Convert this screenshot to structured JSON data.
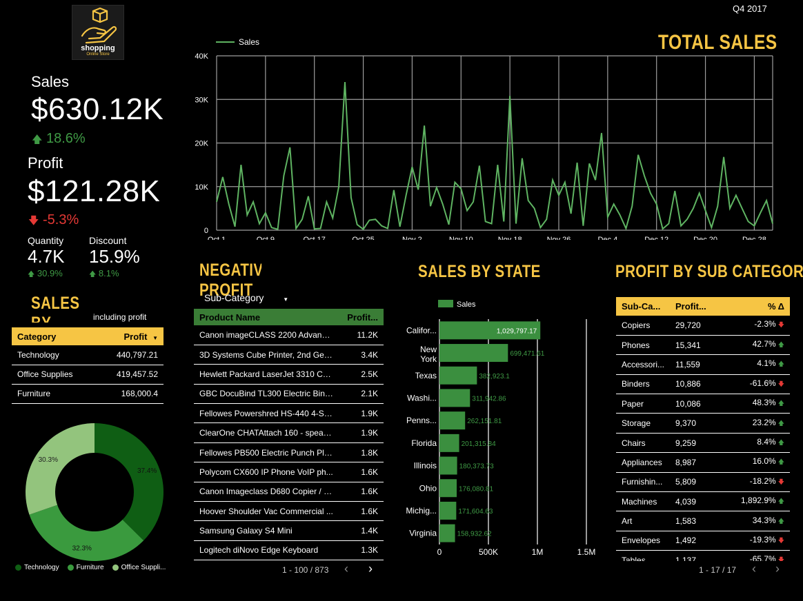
{
  "header": {
    "period": "Q4 2017",
    "logo_text": "shopping",
    "logo_sub": "Online Store"
  },
  "kpis": {
    "sales_label": "Sales",
    "sales_value": "$630.12K",
    "sales_delta": "18.6%",
    "profit_label": "Profit",
    "profit_value": "$121.28K",
    "profit_delta": "-5.3%",
    "quantity_label": "Quantity",
    "quantity_value": "4.7K",
    "quantity_delta": "30.9%",
    "discount_label": "Discount",
    "discount_value": "15.9%",
    "discount_delta": "8.1%"
  },
  "category": {
    "title": "SALES BY CATEGORY",
    "subtitle": "including profit",
    "col_category": "Category",
    "col_profit": "Profit",
    "rows": [
      {
        "name": "Technology",
        "profit": "440,797.21"
      },
      {
        "name": "Office Supplies",
        "profit": "419,457.52"
      },
      {
        "name": "Furniture",
        "profit": "168,000.4"
      }
    ]
  },
  "negative": {
    "title": "NEGATIVE PROFIT",
    "filter_label": "Sub-Category",
    "col_product": "Product Name",
    "col_profit": "Profit...",
    "rows": [
      {
        "name": "Canon imageCLASS 2200 Advance...",
        "value": "11.2K"
      },
      {
        "name": "3D Systems Cube Printer, 2nd Gene...",
        "value": "3.4K"
      },
      {
        "name": "Hewlett Packard LaserJet 3310 Co...",
        "value": "2.5K"
      },
      {
        "name": "GBC DocuBind TL300 Electric Bindi...",
        "value": "2.1K"
      },
      {
        "name": "Fellowes Powershred HS-440 4-She...",
        "value": "1.9K"
      },
      {
        "name": "ClearOne CHATAttach 160 - speake...",
        "value": "1.9K"
      },
      {
        "name": "Fellowes PB500 Electric Punch Pla...",
        "value": "1.8K"
      },
      {
        "name": "Polycom CX600 IP Phone VoIP ph...",
        "value": "1.6K"
      },
      {
        "name": "Canon Imageclass D680 Copier / F...",
        "value": "1.6K"
      },
      {
        "name": "Hoover Shoulder Vac Commercial ...",
        "value": "1.6K"
      },
      {
        "name": "Samsung Galaxy S4 Mini",
        "value": "1.4K"
      },
      {
        "name": "Logitech diNovo Edge Keyboard",
        "value": "1.3K"
      }
    ],
    "pager": "1 - 100 / 873"
  },
  "subcat": {
    "title": "PROFIT BY SUB CATEGORY",
    "col_name": "Sub-Ca...",
    "col_profit": "Profit...",
    "col_delta": "% Δ",
    "rows": [
      {
        "name": "Copiers",
        "profit": "29,720",
        "delta": "-2.3%",
        "dir": "down"
      },
      {
        "name": "Phones",
        "profit": "15,341",
        "delta": "42.7%",
        "dir": "up"
      },
      {
        "name": "Accessori...",
        "profit": "11,559",
        "delta": "4.1%",
        "dir": "up"
      },
      {
        "name": "Binders",
        "profit": "10,886",
        "delta": "-61.6%",
        "dir": "down"
      },
      {
        "name": "Paper",
        "profit": "10,086",
        "delta": "48.3%",
        "dir": "up"
      },
      {
        "name": "Storage",
        "profit": "9,370",
        "delta": "23.2%",
        "dir": "up"
      },
      {
        "name": "Chairs",
        "profit": "9,259",
        "delta": "8.4%",
        "dir": "up"
      },
      {
        "name": "Appliances",
        "profit": "8,987",
        "delta": "16.0%",
        "dir": "up"
      },
      {
        "name": "Furnishin...",
        "profit": "5,809",
        "delta": "-18.2%",
        "dir": "down"
      },
      {
        "name": "Machines",
        "profit": "4,039",
        "delta": "1,892.9%",
        "dir": "up"
      },
      {
        "name": "Art",
        "profit": "1,583",
        "delta": "34.3%",
        "dir": "up"
      },
      {
        "name": "Envelopes",
        "profit": "1,492",
        "delta": "-19.3%",
        "dir": "down"
      },
      {
        "name": "Tables",
        "profit": "1,137",
        "delta": "-65.7%",
        "dir": "down"
      }
    ],
    "pager": "1 - 17 / 17"
  },
  "colors": {
    "accent": "#f6c544",
    "line": "#5fb462",
    "bar": "#3b8f3f",
    "dark_green": "#0f5e14",
    "mid_green": "#3a9a3e",
    "light_green": "#93c47d",
    "header_green": "#3a7d36"
  },
  "chart_data": [
    {
      "type": "line",
      "title": "TOTAL SALES",
      "legend": "Sales",
      "x_ticks": [
        "Oct 1",
        "Oct 9",
        "Oct 17",
        "Oct 25",
        "Nov 2",
        "Nov 10",
        "Nov 18",
        "Nov 26",
        "Dec 4",
        "Dec 12",
        "Dec 20",
        "Dec 28"
      ],
      "y_ticks": [
        "0",
        "10K",
        "20K",
        "30K",
        "40K"
      ],
      "ylim": [
        0,
        40000
      ],
      "x_start": "2017-10-01",
      "values": [
        6500,
        12200,
        6000,
        800,
        15000,
        3500,
        6500,
        1500,
        4000,
        600,
        200,
        12500,
        19000,
        400,
        2500,
        7800,
        300,
        400,
        6500,
        2800,
        10000,
        34000,
        7500,
        1300,
        200,
        2300,
        2500,
        1000,
        400,
        9200,
        800,
        8000,
        14500,
        9300,
        24000,
        5500,
        9800,
        6000,
        1300,
        11000,
        9500,
        4500,
        6500,
        14800,
        2000,
        1500,
        15000,
        2000,
        30800,
        1500,
        16500,
        6800,
        5000,
        600,
        2500,
        11500,
        8000,
        11000,
        3800,
        15500,
        1000,
        15300,
        11500,
        22300,
        3000,
        6000,
        3500,
        400,
        5500,
        17300,
        12500,
        8500,
        6000,
        300,
        1500,
        9000,
        1000,
        2500,
        5000,
        8500,
        4500,
        600,
        5500,
        16800,
        5000,
        8000,
        5000,
        2000,
        1000,
        4000,
        6800,
        1500
      ]
    },
    {
      "type": "bar",
      "orientation": "horizontal",
      "title": "SALES BY STATE",
      "legend": "Sales",
      "categories": [
        "Califor...",
        "New York",
        "Texas",
        "Washi...",
        "Penns...",
        "Florida",
        "Illinois",
        "Ohio",
        "Michig...",
        "Virginia"
      ],
      "values": [
        1029797.17,
        699471.61,
        382923.1,
        311942.86,
        262151.81,
        201315.84,
        180373.73,
        176080.81,
        171604.63,
        158932.62
      ],
      "labels": [
        "1,029,797.17",
        "699,471.61",
        "382,923.1",
        "311,942.86",
        "262,151.81",
        "201,315.84",
        "180,373.73",
        "176,080.81",
        "171,604.63",
        "158,932.62"
      ],
      "x_ticks": [
        "0",
        "500K",
        "1M",
        "1.5M"
      ],
      "xlim": [
        0,
        1500000
      ]
    },
    {
      "type": "pie",
      "donut": true,
      "categories": [
        "Technology",
        "Furniture",
        "Office Suppli..."
      ],
      "values": [
        37.4,
        32.3,
        30.3
      ],
      "labels": [
        "37.4%",
        "32.3%",
        "30.3%"
      ]
    }
  ]
}
